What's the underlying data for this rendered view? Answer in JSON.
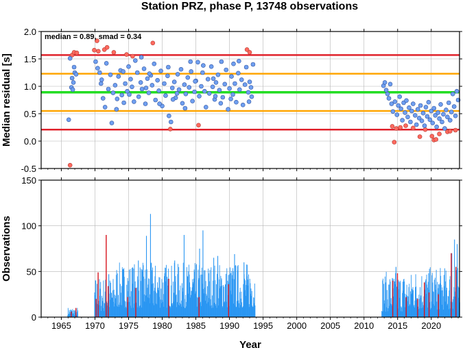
{
  "title": "Station PRZ, phase P, 13748 observations",
  "xlabel": "Year",
  "colors": {
    "median_line": "#22dd22",
    "inner_band": "#ffa500",
    "outer_band": "#e0202a",
    "point_normal": "#6f9ff0",
    "point_outlier": "#ff6a5f",
    "bar_normal": "#2a96f2",
    "bar_outlier": "#d8141e",
    "grid": "#b4b4b4"
  },
  "chart_data": [
    {
      "type": "scatter",
      "ylabel": "Median residual [s]",
      "annotation": "median = 0.89, smad = 0.34",
      "xlim": [
        1962,
        2024.2
      ],
      "ylim": [
        -0.5,
        2.0
      ],
      "x_ticks": [
        "1965",
        "1970",
        "1975",
        "1980",
        "1985",
        "1990",
        "1995",
        "2000",
        "2005",
        "2010",
        "2015",
        "2020"
      ],
      "y_ticks": [
        "-0.5",
        "0.0",
        "0.5",
        "1.0",
        "1.5",
        "2.0"
      ],
      "grid": true,
      "hlines": [
        {
          "y": 0.89,
          "kind": "median"
        },
        {
          "y": 1.23,
          "kind": "inner"
        },
        {
          "y": 0.55,
          "kind": "inner"
        },
        {
          "y": 1.57,
          "kind": "outer"
        },
        {
          "y": 0.21,
          "kind": "outer"
        }
      ],
      "series": [
        {
          "kind": "outlier",
          "points": [
            [
              1966.3,
              -0.44
            ],
            [
              1966.6,
              1.57
            ],
            [
              1966.9,
              1.62
            ],
            [
              1967.3,
              1.61
            ],
            [
              1969.9,
              1.66
            ],
            [
              1970.3,
              1.83
            ],
            [
              1970.5,
              1.64
            ],
            [
              1971.4,
              1.67
            ],
            [
              1971.8,
              1.71
            ],
            [
              1972.8,
              1.62
            ],
            [
              1974.7,
              1.58
            ],
            [
              1975.6,
              1.55
            ],
            [
              1978.6,
              1.79
            ],
            [
              1981.2,
              0.22
            ],
            [
              1985.4,
              0.29
            ],
            [
              1992.6,
              1.67
            ],
            [
              1993.0,
              1.62
            ],
            [
              2014.2,
              0.27
            ],
            [
              2014.5,
              -0.02
            ],
            [
              2014.8,
              0.23
            ],
            [
              2015.4,
              0.25
            ],
            [
              2016.2,
              0.28
            ],
            [
              2017.3,
              0.24
            ],
            [
              2018.3,
              0.08
            ],
            [
              2019.1,
              0.21
            ],
            [
              2020.1,
              0.09
            ],
            [
              2020.4,
              0.02
            ],
            [
              2020.7,
              0.03
            ],
            [
              2021.2,
              0.13
            ],
            [
              2022.4,
              0.17
            ],
            [
              2022.8,
              0.18
            ],
            [
              2023.6,
              0.2
            ]
          ]
        },
        {
          "kind": "normal",
          "points": [
            [
              1966.1,
              0.39
            ],
            [
              1966.3,
              1.51
            ],
            [
              1966.5,
              0.98
            ],
            [
              1966.6,
              1.15
            ],
            [
              1966.8,
              1.07
            ],
            [
              1967.0,
              1.25
            ],
            [
              1967.2,
              1.22
            ],
            [
              1966.7,
              0.94
            ],
            [
              1966.9,
              1.35
            ],
            [
              1970.1,
              1.45
            ],
            [
              1970.4,
              1.33
            ],
            [
              1970.7,
              1.25
            ],
            [
              1970.9,
              1.05
            ],
            [
              1971.0,
              1.12
            ],
            [
              1971.2,
              0.78
            ],
            [
              1971.5,
              0.62
            ],
            [
              1971.7,
              1.42
            ],
            [
              1972.0,
              0.95
            ],
            [
              1972.3,
              1.21
            ],
            [
              1972.5,
              0.33
            ],
            [
              1972.7,
              0.88
            ],
            [
              1973.0,
              1.02
            ],
            [
              1973.3,
              0.77
            ],
            [
              1973.5,
              1.18
            ],
            [
              1973.8,
              1.29
            ],
            [
              1974.0,
              0.84
            ],
            [
              1974.3,
              0.7
            ],
            [
              1974.5,
              1.05
            ],
            [
              1974.8,
              0.91
            ],
            [
              1975.0,
              1.36
            ],
            [
              1975.3,
              1.13
            ],
            [
              1975.5,
              0.99
            ],
            [
              1975.8,
              0.72
            ],
            [
              1976.0,
              1.47
            ],
            [
              1976.3,
              1.25
            ],
            [
              1976.5,
              0.81
            ],
            [
              1976.8,
              1.07
            ],
            [
              1977.0,
              0.95
            ],
            [
              1977.3,
              1.32
            ],
            [
              1977.5,
              0.68
            ],
            [
              1977.8,
              1.14
            ],
            [
              1978.0,
              0.88
            ],
            [
              1978.3,
              1.2
            ],
            [
              1978.5,
              1.02
            ],
            [
              1978.8,
              1.41
            ],
            [
              1979.0,
              0.75
            ],
            [
              1979.3,
              1.11
            ],
            [
              1979.5,
              0.92
            ],
            [
              1979.8,
              1.28
            ],
            [
              1980.0,
              0.64
            ],
            [
              1980.3,
              1.05
            ],
            [
              1980.5,
              0.83
            ],
            [
              1980.8,
              1.19
            ],
            [
              1981.0,
              0.46
            ],
            [
              1981.3,
              0.35
            ],
            [
              1981.5,
              0.97
            ],
            [
              1981.8,
              1.08
            ],
            [
              1982.0,
              0.79
            ],
            [
              1982.3,
              1.22
            ],
            [
              1982.5,
              0.94
            ],
            [
              1982.8,
              1.31
            ],
            [
              1983.0,
              0.69
            ],
            [
              1983.3,
              1.03
            ],
            [
              1983.5,
              0.86
            ],
            [
              1983.8,
              1.16
            ],
            [
              1984.0,
              0.98
            ],
            [
              1984.3,
              1.27
            ],
            [
              1984.5,
              0.73
            ],
            [
              1984.8,
              0.9
            ],
            [
              1985.0,
              1.1
            ],
            [
              1985.3,
              1.44
            ],
            [
              1985.5,
              0.82
            ],
            [
              1985.8,
              1.0
            ],
            [
              1986.0,
              1.25
            ],
            [
              1986.3,
              0.91
            ],
            [
              1986.5,
              0.62
            ],
            [
              1986.8,
              1.13
            ],
            [
              1987.0,
              0.87
            ],
            [
              1987.3,
              1.36
            ],
            [
              1987.5,
              0.99
            ],
            [
              1987.8,
              0.76
            ],
            [
              1988.0,
              1.07
            ],
            [
              1988.3,
              1.21
            ],
            [
              1988.5,
              0.93
            ],
            [
              1988.8,
              1.45
            ],
            [
              1989.0,
              0.8
            ],
            [
              1989.3,
              1.04
            ],
            [
              1989.5,
              1.3
            ],
            [
              1989.8,
              0.58
            ],
            [
              1990.0,
              0.96
            ],
            [
              1990.3,
              1.18
            ],
            [
              1990.5,
              0.85
            ],
            [
              1990.8,
              1.05
            ],
            [
              1991.0,
              0.71
            ],
            [
              1991.3,
              1.24
            ],
            [
              1991.5,
              0.94
            ],
            [
              1991.8,
              1.12
            ],
            [
              1992.0,
              0.66
            ],
            [
              1992.3,
              1.03
            ],
            [
              1992.5,
              1.35
            ],
            [
              1992.8,
              0.89
            ],
            [
              1993.0,
              1.08
            ],
            [
              1993.3,
              0.81
            ],
            [
              1993.5,
              1.4
            ],
            [
              1974.2,
              1.27
            ],
            [
              1976.9,
              1.53
            ],
            [
              1979.6,
              0.68
            ],
            [
              1982.2,
              0.87
            ],
            [
              1984.9,
              1.09
            ],
            [
              1987.6,
              1.14
            ],
            [
              1990.2,
              0.77
            ],
            [
              1992.9,
              0.72
            ],
            [
              1973.2,
              0.58
            ],
            [
              1977.6,
              0.97
            ],
            [
              1980.9,
              1.35
            ],
            [
              1983.4,
              0.6
            ],
            [
              1986.1,
              1.38
            ],
            [
              1988.7,
              0.69
            ],
            [
              1991.4,
              1.46
            ],
            [
              1993.2,
              0.98
            ],
            [
              1975.1,
              0.85
            ],
            [
              1978.1,
              1.23
            ],
            [
              1981.6,
              0.76
            ],
            [
              1984.2,
              1.45
            ],
            [
              1987.9,
              0.82
            ],
            [
              1990.6,
              1.41
            ],
            [
              2012.9,
              1.01
            ],
            [
              2013.1,
              1.07
            ],
            [
              2013.3,
              0.93
            ],
            [
              2013.5,
              0.86
            ],
            [
              2013.7,
              0.78
            ],
            [
              2013.9,
              1.04
            ],
            [
              2014.1,
              0.68
            ],
            [
              2014.3,
              0.54
            ],
            [
              2014.6,
              0.72
            ],
            [
              2014.9,
              0.48
            ],
            [
              2015.1,
              0.65
            ],
            [
              2015.3,
              0.81
            ],
            [
              2015.5,
              0.59
            ],
            [
              2015.7,
              0.38
            ],
            [
              2015.9,
              0.7
            ],
            [
              2016.1,
              0.52
            ],
            [
              2016.3,
              0.74
            ],
            [
              2016.5,
              0.44
            ],
            [
              2016.7,
              0.61
            ],
            [
              2016.9,
              0.35
            ],
            [
              2017.1,
              0.55
            ],
            [
              2017.3,
              0.68
            ],
            [
              2017.6,
              0.47
            ],
            [
              2017.8,
              0.3
            ],
            [
              2018.0,
              0.58
            ],
            [
              2018.2,
              0.42
            ],
            [
              2018.4,
              0.65
            ],
            [
              2018.6,
              0.37
            ],
            [
              2018.8,
              0.51
            ],
            [
              2019.0,
              0.28
            ],
            [
              2019.2,
              0.62
            ],
            [
              2019.4,
              0.45
            ],
            [
              2019.6,
              0.71
            ],
            [
              2019.8,
              0.39
            ],
            [
              2020.0,
              0.55
            ],
            [
              2020.2,
              0.33
            ],
            [
              2020.4,
              0.6
            ],
            [
              2020.6,
              0.47
            ],
            [
              2020.8,
              0.26
            ],
            [
              2021.0,
              0.52
            ],
            [
              2021.2,
              0.41
            ],
            [
              2021.4,
              0.67
            ],
            [
              2021.6,
              0.35
            ],
            [
              2021.8,
              0.49
            ],
            [
              2022.0,
              0.23
            ],
            [
              2022.2,
              0.57
            ],
            [
              2022.4,
              0.44
            ],
            [
              2022.6,
              0.7
            ],
            [
              2022.8,
              0.38
            ],
            [
              2023.0,
              0.53
            ],
            [
              2023.2,
              0.86
            ],
            [
              2023.4,
              0.63
            ],
            [
              2023.6,
              0.46
            ],
            [
              2023.8,
              0.91
            ],
            [
              2024.0,
              0.75
            ]
          ]
        }
      ]
    },
    {
      "type": "bar",
      "ylabel": "Observations",
      "xlabel": "Year",
      "xlim": [
        1962,
        2024.2
      ],
      "ylim": [
        0,
        150
      ],
      "x_ticks": [
        "1965",
        "1970",
        "1975",
        "1980",
        "1985",
        "1990",
        "1995",
        "2000",
        "2005",
        "2010",
        "2015",
        "2020"
      ],
      "y_ticks": [
        "0",
        "50",
        "100",
        "150"
      ],
      "grid": true,
      "segments": [
        {
          "start": 1965.9,
          "end": 1967.4,
          "min": 2,
          "max": 11
        },
        {
          "start": 1969.9,
          "end": 1973.0,
          "min": 6,
          "max": 45
        },
        {
          "start": 1973.0,
          "end": 1993.8,
          "min": 10,
          "max": 60
        },
        {
          "start": 2012.6,
          "end": 2017.1,
          "min": 6,
          "max": 50
        },
        {
          "start": 2017.1,
          "end": 2024.2,
          "min": 8,
          "max": 55
        }
      ],
      "peaks": [
        [
          1978.2,
          113
        ],
        [
          1977.6,
          89
        ],
        [
          1983.2,
          90
        ],
        [
          1985.5,
          75
        ],
        [
          1987.6,
          65
        ],
        [
          1986.0,
          95
        ],
        [
          1988.2,
          67
        ],
        [
          1990.7,
          69
        ],
        [
          1992.1,
          60
        ],
        [
          2014.7,
          55
        ],
        [
          2023.4,
          85
        ],
        [
          2023.8,
          80
        ],
        [
          2023.0,
          70
        ],
        [
          1972.0,
          47
        ],
        [
          1976.4,
          62
        ],
        [
          1981.8,
          62
        ]
      ],
      "red_bars": [
        [
          1966.4,
          6
        ],
        [
          1967.1,
          10
        ],
        [
          1970.1,
          20
        ],
        [
          1970.4,
          49
        ],
        [
          1971.6,
          90
        ],
        [
          1971.9,
          34
        ],
        [
          1974.8,
          22
        ],
        [
          1976.0,
          32
        ],
        [
          1980.9,
          42
        ],
        [
          1985.4,
          22
        ],
        [
          1989.8,
          36
        ],
        [
          2014.2,
          40
        ],
        [
          2014.9,
          48
        ],
        [
          2016.2,
          22
        ],
        [
          2017.9,
          20
        ],
        [
          2018.9,
          38
        ],
        [
          2019.6,
          27
        ],
        [
          2021.0,
          25
        ],
        [
          2022.9,
          70
        ],
        [
          2023.6,
          55
        ]
      ]
    }
  ]
}
